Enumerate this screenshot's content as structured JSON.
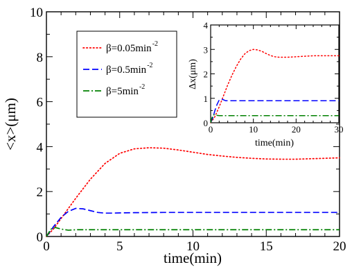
{
  "chart_data": [
    {
      "type": "line",
      "xlabel": "time(min)",
      "ylabel": "<x>(μm)",
      "xlim": [
        0,
        20
      ],
      "ylim": [
        0,
        10
      ],
      "x_ticks": [
        0,
        5,
        10,
        15,
        20
      ],
      "y_ticks": [
        0,
        2,
        4,
        6,
        8,
        10
      ],
      "grid": false,
      "legend_position": "top-left",
      "series": [
        {
          "name": "β=0.05min-2",
          "label_main": "β=0.05min",
          "label_sup": "-2",
          "color": "#ff0000",
          "dash": "dotted",
          "x": [
            0,
            0.5,
            1,
            1.5,
            2,
            3,
            4,
            5,
            6,
            7,
            8,
            9,
            10,
            11,
            12,
            13,
            14,
            15,
            16,
            17,
            18,
            19,
            20
          ],
          "y": [
            0,
            0.35,
            0.8,
            1.25,
            1.7,
            2.55,
            3.25,
            3.7,
            3.9,
            3.95,
            3.93,
            3.85,
            3.75,
            3.65,
            3.58,
            3.52,
            3.48,
            3.45,
            3.44,
            3.44,
            3.46,
            3.48,
            3.5
          ]
        },
        {
          "name": "β=0.5min-2",
          "label_main": "β=0.5min",
          "label_sup": "-2",
          "color": "#0000ff",
          "dash": "dashed",
          "x": [
            0,
            0.5,
            1,
            1.5,
            2,
            2.5,
            3,
            3.5,
            4,
            4.5,
            5,
            6,
            8,
            10,
            12,
            14,
            16,
            18,
            20
          ],
          "y": [
            0,
            0.45,
            0.85,
            1.12,
            1.25,
            1.23,
            1.15,
            1.07,
            1.04,
            1.04,
            1.05,
            1.06,
            1.07,
            1.07,
            1.07,
            1.07,
            1.07,
            1.07,
            1.07
          ]
        },
        {
          "name": "β=5min-2",
          "label_main": "β=5min",
          "label_sup": "-2",
          "color": "#008000",
          "dash": "dashdot",
          "x": [
            0,
            0.3,
            0.6,
            1,
            1.5,
            2,
            3,
            5,
            10,
            15,
            20
          ],
          "y": [
            0,
            0.32,
            0.4,
            0.33,
            0.28,
            0.3,
            0.3,
            0.3,
            0.3,
            0.3,
            0.3
          ]
        }
      ]
    },
    {
      "type": "line",
      "xlabel": "time(min)",
      "ylabel": "Δx(μm)",
      "xlim": [
        0,
        30
      ],
      "ylim": [
        0,
        4
      ],
      "x_ticks": [
        0,
        10,
        20,
        30
      ],
      "y_ticks": [
        0,
        1,
        2,
        3,
        4
      ],
      "grid": false,
      "series": [
        {
          "name": "β=0.05min-2",
          "color": "#ff0000",
          "dash": "dotted",
          "x": [
            0,
            1,
            2,
            3,
            4,
            5,
            6,
            7,
            8,
            9,
            10,
            11,
            12,
            13,
            14,
            15,
            16,
            18,
            20,
            22,
            24,
            26,
            28,
            30
          ],
          "y": [
            0,
            0.25,
            0.65,
            1.1,
            1.55,
            1.95,
            2.3,
            2.6,
            2.82,
            2.95,
            3.0,
            2.98,
            2.92,
            2.83,
            2.75,
            2.7,
            2.68,
            2.68,
            2.7,
            2.72,
            2.74,
            2.74,
            2.74,
            2.74
          ]
        },
        {
          "name": "β=0.5min-2",
          "color": "#0000ff",
          "dash": "dashed",
          "x": [
            0,
            0.5,
            1,
            1.5,
            2,
            2.5,
            3,
            3.5,
            4,
            5,
            10,
            15,
            20,
            25,
            30
          ],
          "y": [
            0,
            0.2,
            0.5,
            0.75,
            0.93,
            0.97,
            0.94,
            0.9,
            0.9,
            0.9,
            0.9,
            0.9,
            0.9,
            0.9,
            0.9
          ]
        },
        {
          "name": "β=5min-2",
          "color": "#008000",
          "dash": "dashdot",
          "x": [
            0,
            0.3,
            0.6,
            1,
            1.5,
            2,
            3,
            5,
            10,
            20,
            30
          ],
          "y": [
            0,
            0.2,
            0.32,
            0.33,
            0.3,
            0.29,
            0.29,
            0.29,
            0.29,
            0.29,
            0.29
          ]
        }
      ]
    }
  ]
}
